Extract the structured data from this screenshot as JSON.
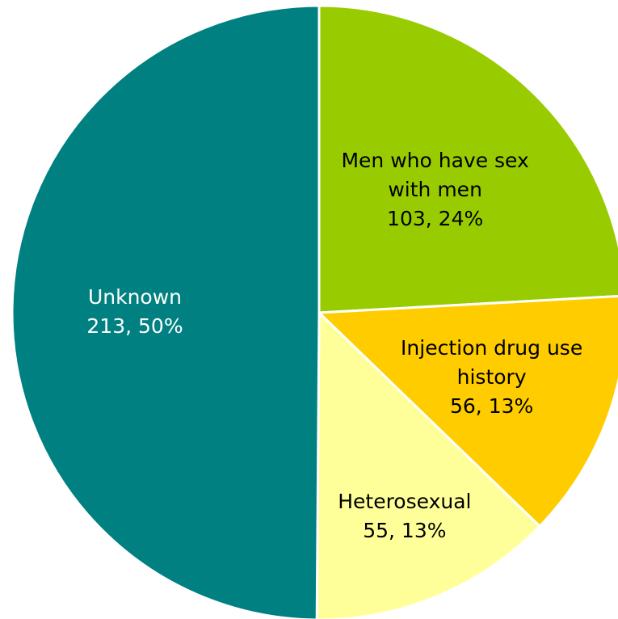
{
  "chart_data": {
    "type": "pie",
    "categories": [
      "Men who have sex with men",
      "Injection drug use history",
      "Heterosexual",
      "Unknown"
    ],
    "values": [
      103,
      56,
      55,
      213
    ],
    "value_labels": [
      "103, 24%",
      "56, 13%",
      "55, 13%",
      "213, 50%"
    ],
    "colors": [
      "#99cc00",
      "#ffcc00",
      "#ffff99",
      "#008080"
    ]
  }
}
